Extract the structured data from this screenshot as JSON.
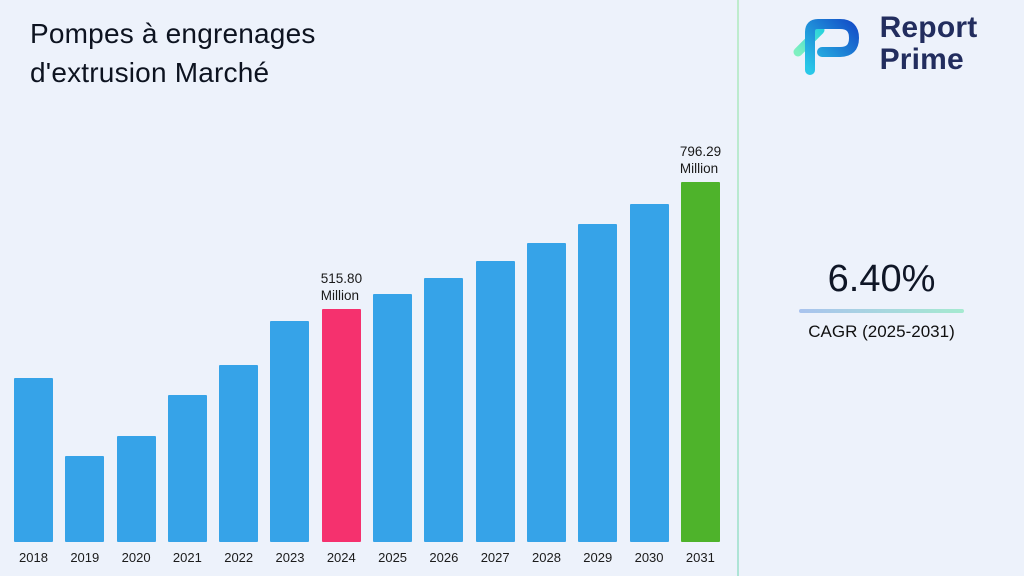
{
  "header": {
    "title_line1": "Pompes à engrenages",
    "title_line2": "d'extrusion Marché"
  },
  "brand": {
    "line1": "Report",
    "line2": "Prime"
  },
  "stats": {
    "value": "6.40%",
    "label": "CAGR (2025-2031)"
  },
  "chart_data": {
    "type": "bar",
    "title": "Pompes à engrenages d'extrusion Marché",
    "unit": "Million",
    "categories": [
      "2018",
      "2019",
      "2020",
      "2021",
      "2022",
      "2023",
      "2024",
      "2025",
      "2026",
      "2027",
      "2028",
      "2029",
      "2030",
      "2031"
    ],
    "values": [
      363,
      190,
      235,
      325,
      392,
      489,
      515.8,
      549,
      584,
      621,
      661,
      703,
      748,
      796.29
    ],
    "ylim": [
      0,
      800
    ],
    "xlabel": "",
    "ylabel": "",
    "grid": false,
    "legend": false,
    "default_color": "#36a3e8",
    "bar_overrides": {
      "2024": "#f5316e",
      "2031": "#4eb32b"
    },
    "annotations": [
      {
        "category": "2024",
        "lines": [
          "515.80",
          "Million"
        ]
      },
      {
        "category": "2031",
        "lines": [
          "796.29",
          "Million"
        ]
      }
    ]
  }
}
